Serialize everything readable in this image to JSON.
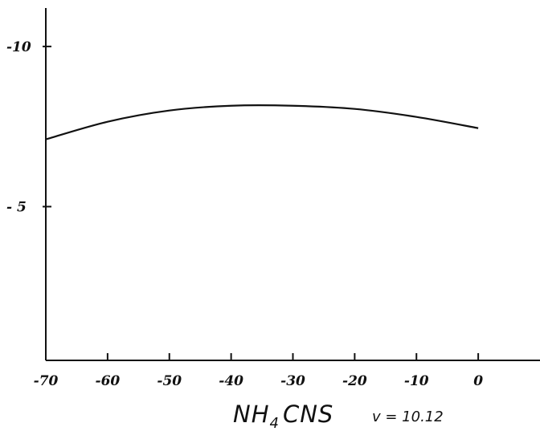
{
  "chart_data": {
    "type": "line",
    "x": [
      -70,
      -60,
      -50,
      -40,
      -30,
      -20,
      -10,
      0
    ],
    "series": [
      {
        "values": [
          -7.1,
          -7.65,
          -8.0,
          -8.15,
          -8.15,
          -8.05,
          -7.8,
          -7.45
        ]
      }
    ],
    "xlim": [
      -70,
      10
    ],
    "ylim": [
      -0.2,
      -11.2
    ],
    "x_ticks": [
      -70,
      -60,
      -50,
      -40,
      -30,
      -20,
      -10,
      0
    ],
    "x_tick_labels": [
      "-70",
      "-60",
      "-50",
      "-40",
      "-30",
      "-20",
      "-10",
      "0"
    ],
    "y_ticks": [
      -10,
      -5
    ],
    "y_tick_labels": [
      "-10",
      "- 5"
    ],
    "caption": {
      "compound": "NH4 CNS",
      "condition": "v = 10.12"
    },
    "grid": false,
    "colors": {
      "line": "#111111",
      "axes": "#111111"
    }
  }
}
